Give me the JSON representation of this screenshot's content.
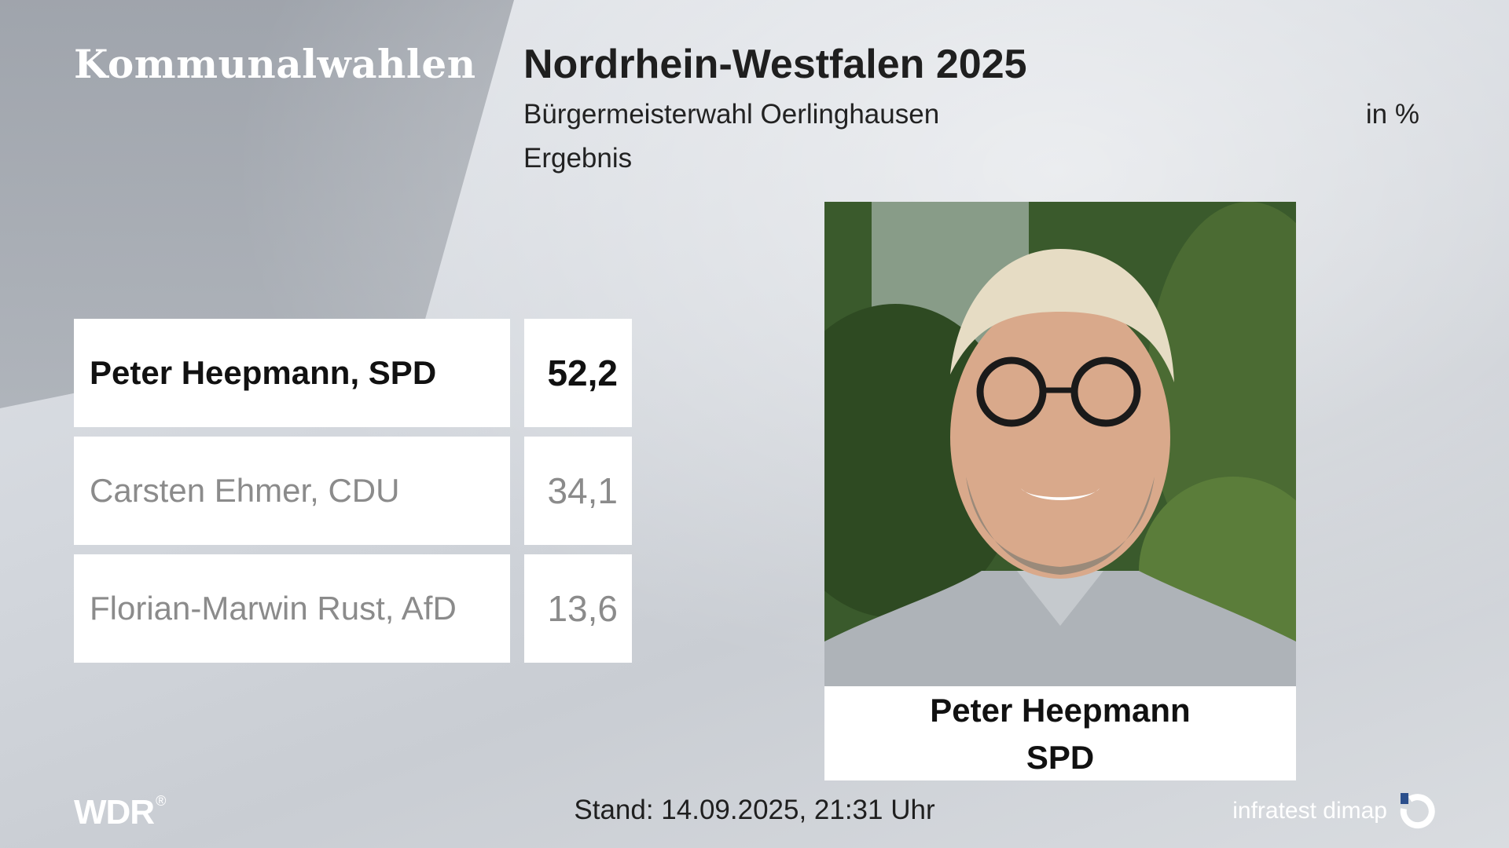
{
  "header": {
    "brand_title": "Kommunalwahlen",
    "title": "Nordrhein-Westfalen 2025",
    "subtitle": "Bürgermeisterwahl Oerlinghausen",
    "unit": "in %",
    "result_label": "Ergebnis"
  },
  "results": [
    {
      "name": "Peter Heepmann, SPD",
      "value": "52,2",
      "winner": true
    },
    {
      "name": "Carsten Ehmer, CDU",
      "value": "34,1",
      "winner": false
    },
    {
      "name": "Florian-Marwin Rust, AfD",
      "value": "13,6",
      "winner": false
    }
  ],
  "winner_card": {
    "name": "Peter Heepmann",
    "party": "SPD"
  },
  "footer": {
    "broadcaster": "WDR",
    "registered_mark": "®",
    "timestamp": "Stand: 14.09.2025, 21:31 Uhr",
    "pollster": "infratest dimap"
  },
  "colors": {
    "white": "#ffffff",
    "winner_text": "#111111",
    "other_text": "#8b8b8b"
  }
}
